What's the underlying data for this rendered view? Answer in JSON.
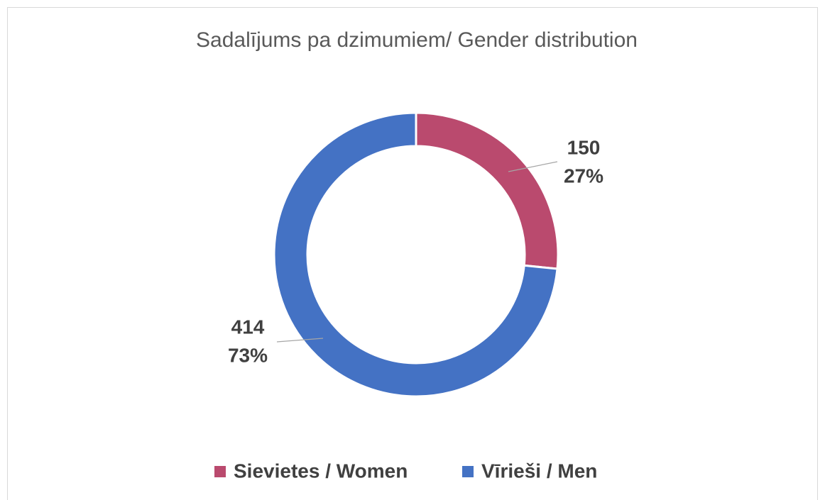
{
  "chart_data": {
    "type": "doughnut",
    "title": "Sadalījums pa dzimumiem/  Gender distribution",
    "categories": [
      "Sievietes / Women",
      "Vīrieši / Men"
    ],
    "values": [
      150,
      414
    ],
    "percent_labels": [
      "27%",
      "73%"
    ],
    "colors": [
      "#BA4A6E",
      "#4472C4"
    ],
    "legend": "bottom"
  }
}
